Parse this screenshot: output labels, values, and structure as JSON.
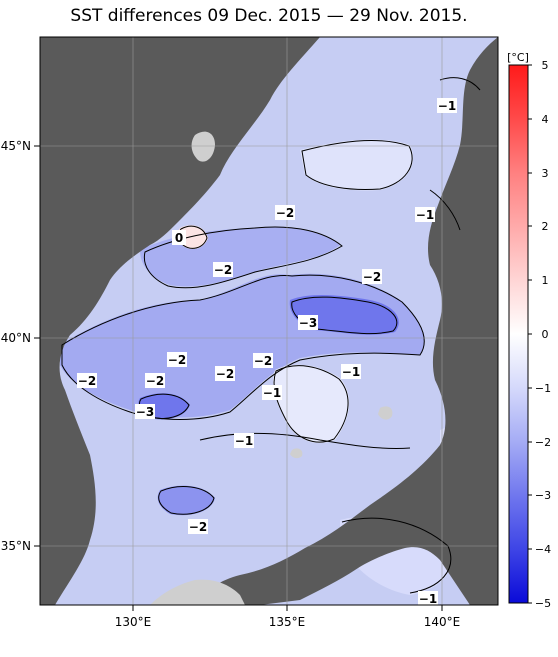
{
  "title": "SST differences 09 Dec. 2015 — 29 Nov. 2015.",
  "axes": {
    "lon_ticks": [
      "130°E",
      "135°E",
      "140°E"
    ],
    "lat_ticks": [
      "45°N",
      "40°N",
      "35°N"
    ]
  },
  "colorbar": {
    "unit": "[°C]",
    "ticks": [
      "5",
      "4",
      "3",
      "2",
      "1",
      "0",
      "−1",
      "−2",
      "−3",
      "−4",
      "−5"
    ],
    "colors": {
      "warm_max": "#ff0000",
      "zero": "#ffffff",
      "cold_max": "#0000ff"
    }
  },
  "contour_labels": [
    {
      "text": "0"
    },
    {
      "text": "−2"
    },
    {
      "text": "−2"
    },
    {
      "text": "−1"
    },
    {
      "text": "−1"
    },
    {
      "text": "−2"
    },
    {
      "text": "−3"
    },
    {
      "text": "−2"
    },
    {
      "text": "−2"
    },
    {
      "text": "−2"
    },
    {
      "text": "−2"
    },
    {
      "text": "−2"
    },
    {
      "text": "−3"
    },
    {
      "text": "−1"
    },
    {
      "text": "−1"
    },
    {
      "text": "−1"
    },
    {
      "text": "−2"
    },
    {
      "text": "−1"
    }
  ],
  "colors": {
    "land": "#5a5a5a",
    "sea_base": "#c6cdf3",
    "grid": "#9a9a9a"
  }
}
